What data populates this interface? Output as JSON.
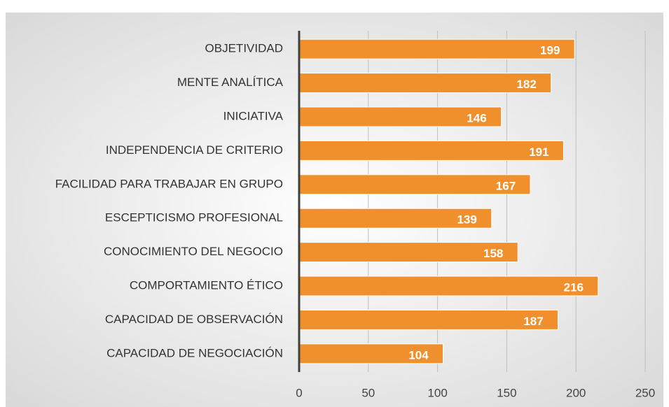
{
  "chart_data": {
    "type": "barh",
    "categories": [
      "OBJETIVIDAD",
      "MENTE ANALÍTICA",
      "INICIATIVA",
      "INDEPENDENCIA DE CRITERIO",
      "FACILIDAD PARA TRABAJAR EN GRUPO",
      "ESCEPTICISMO PROFESIONAL",
      "CONOCIMIENTO DEL NEGOCIO",
      "COMPORTAMIENTO ÉTICO",
      "CAPACIDAD DE OBSERVACIÓN",
      "CAPACIDAD DE NEGOCIACIÓN"
    ],
    "values": [
      199,
      182,
      146,
      191,
      167,
      139,
      158,
      216,
      187,
      104
    ],
    "color": "#f0902c",
    "xlim": [
      0,
      250
    ],
    "xticks": [
      0,
      50,
      100,
      150,
      200,
      250
    ],
    "grid": true
  }
}
